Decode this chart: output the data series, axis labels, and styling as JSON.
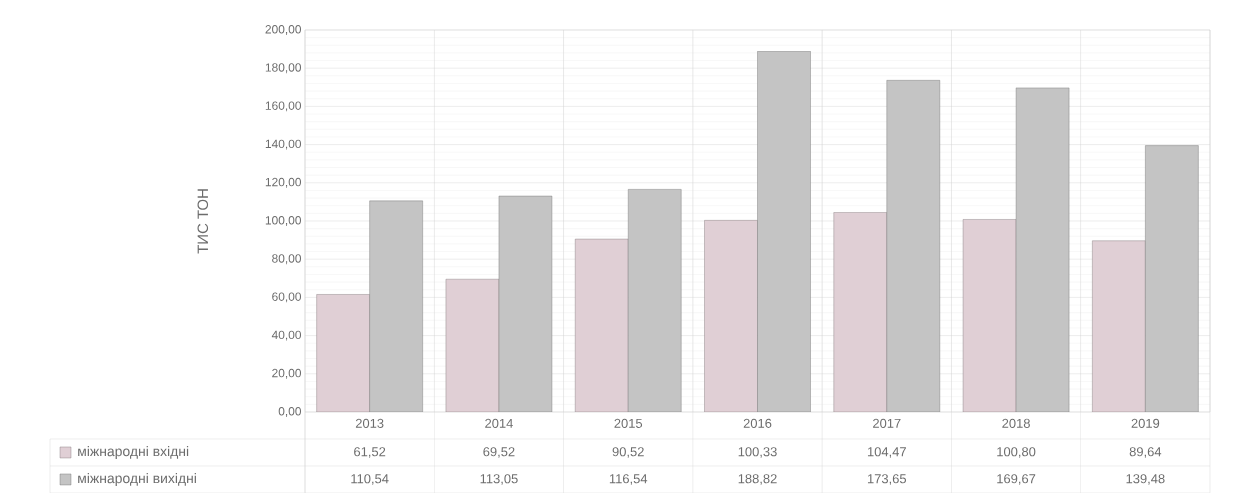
{
  "chart_data": {
    "type": "bar",
    "ylabel": "ТИС ТОН",
    "categories": [
      "2013",
      "2014",
      "2015",
      "2016",
      "2017",
      "2018",
      "2019"
    ],
    "series": [
      {
        "name": "міжнародні вхідні",
        "color": "#e0cfd5",
        "values": [
          61.52,
          69.52,
          90.52,
          100.33,
          104.47,
          100.8,
          89.64
        ],
        "value_labels": [
          "61,52",
          "69,52",
          "90,52",
          "100,33",
          "104,47",
          "100,80",
          "89,64"
        ]
      },
      {
        "name": "міжнародні вихідні",
        "color": "#c4c4c4",
        "values": [
          110.54,
          113.05,
          116.54,
          188.82,
          173.65,
          169.67,
          139.48
        ],
        "value_labels": [
          "110,54",
          "113,05",
          "116,54",
          "188,82",
          "173,65",
          "169,67",
          "139,48"
        ]
      }
    ],
    "ylim": [
      0,
      200
    ],
    "yticks": [
      {
        "value": 0,
        "label": "0,00"
      },
      {
        "value": 20,
        "label": "20,00"
      },
      {
        "value": 40,
        "label": "40,00"
      },
      {
        "value": 60,
        "label": "60,00"
      },
      {
        "value": 80,
        "label": "80,00"
      },
      {
        "value": 100,
        "label": "100,00"
      },
      {
        "value": 120,
        "label": "120,00"
      },
      {
        "value": 140,
        "label": "140,00"
      },
      {
        "value": 160,
        "label": "160,00"
      },
      {
        "value": 180,
        "label": "180,00"
      },
      {
        "value": 200,
        "label": "200,00"
      }
    ],
    "grid": true,
    "legend": "bottom"
  }
}
